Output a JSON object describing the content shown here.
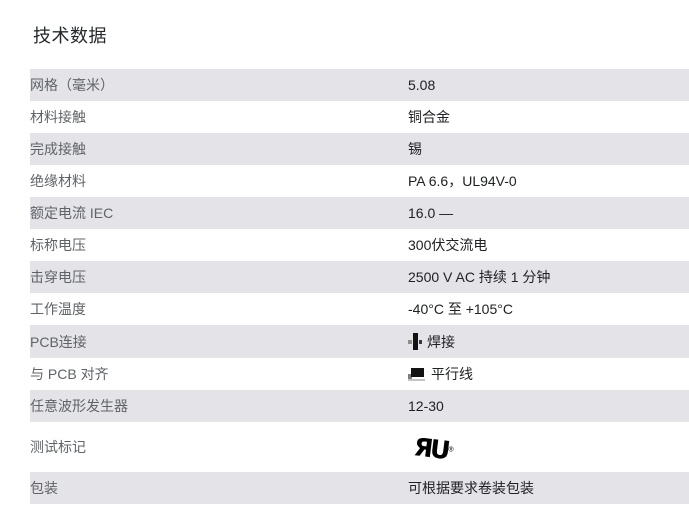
{
  "page": {
    "title": "技术数据"
  },
  "table": {
    "rows": [
      {
        "label": "网格（毫米）",
        "value": "5.08"
      },
      {
        "label": "材料接触",
        "value": "铜合金"
      },
      {
        "label": "完成接触",
        "value": "锡"
      },
      {
        "label": "绝缘材料",
        "value": "PA 6.6，UL94V-0"
      },
      {
        "label": "额定电流 IEC",
        "value": "16.0 —"
      },
      {
        "label": "标称电压",
        "value": "300伏交流电"
      },
      {
        "label": "击穿电压",
        "value": "2500 V AC 持续 1 分钟"
      },
      {
        "label": "工作温度",
        "value": "-40°C 至 +105°C"
      },
      {
        "label": "PCB连接",
        "value": "焊接",
        "icon": "solder-icon"
      },
      {
        "label": "与 PCB 对齐",
        "value": "平行线",
        "icon": "parallel-line-icon"
      },
      {
        "label": "任意波形发生器",
        "value": "12-30"
      },
      {
        "label": "测试标记",
        "value": "",
        "icon": "ul-recognized-mark"
      },
      {
        "label": "包装",
        "value": "可根据要求卷装包装"
      }
    ],
    "ul_mark": {
      "text": "ЯU",
      "registered_symbol": "®"
    },
    "colors": {
      "row_alt_bg": "#e4e4e8",
      "label_text": "#5f6368",
      "value_text": "#202124"
    }
  }
}
